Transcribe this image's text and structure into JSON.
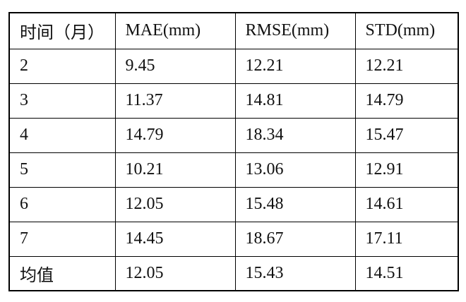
{
  "table": {
    "header": [
      "时间（月）",
      "MAE(mm)",
      "RMSE(mm)",
      "STD(mm)"
    ],
    "rows": [
      [
        "2",
        "9.45",
        "12.21",
        "12.21"
      ],
      [
        "3",
        "11.37",
        "14.81",
        "14.79"
      ],
      [
        "4",
        "14.79",
        "18.34",
        "15.47"
      ],
      [
        "5",
        "10.21",
        "13.06",
        "12.91"
      ],
      [
        "6",
        "12.05",
        "15.48",
        "14.61"
      ],
      [
        "7",
        "14.45",
        "18.67",
        "17.11"
      ],
      [
        "均值",
        "12.05",
        "15.43",
        "14.51"
      ]
    ]
  }
}
